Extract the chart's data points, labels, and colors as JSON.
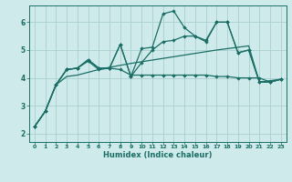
{
  "xlabel": "Humidex (Indice chaleur)",
  "bg_color": "#ceeaea",
  "grid_color": "#aacfcf",
  "line_color": "#1a6e65",
  "xlim": [
    -0.5,
    23.5
  ],
  "ylim": [
    1.7,
    6.6
  ],
  "xticks": [
    0,
    1,
    2,
    3,
    4,
    5,
    6,
    7,
    8,
    9,
    10,
    11,
    12,
    13,
    14,
    15,
    16,
    17,
    18,
    19,
    20,
    21,
    22,
    23
  ],
  "yticks": [
    2,
    3,
    4,
    5,
    6
  ],
  "line_nomark_y": [
    2.25,
    2.8,
    3.75,
    4.05,
    4.1,
    4.2,
    4.3,
    4.38,
    4.45,
    4.52,
    4.58,
    4.64,
    4.7,
    4.76,
    4.82,
    4.88,
    4.94,
    5.0,
    5.05,
    5.1,
    5.15,
    3.85,
    3.9,
    3.95
  ],
  "line_flat_y": [
    2.25,
    2.8,
    3.75,
    4.3,
    4.35,
    4.6,
    4.3,
    4.35,
    4.3,
    4.1,
    4.1,
    4.1,
    4.1,
    4.1,
    4.1,
    4.1,
    4.1,
    4.05,
    4.05,
    4.0,
    4.0,
    4.0,
    3.85,
    3.95
  ],
  "line_mid_y": [
    2.25,
    2.8,
    3.75,
    4.3,
    4.35,
    4.65,
    4.35,
    4.35,
    5.2,
    4.05,
    4.55,
    5.0,
    5.3,
    5.35,
    5.5,
    5.5,
    5.3,
    6.0,
    6.0,
    4.9,
    5.0,
    3.85,
    3.85,
    3.95
  ],
  "line_top_y": [
    2.25,
    2.8,
    3.75,
    4.3,
    4.35,
    4.65,
    4.35,
    4.35,
    5.2,
    4.05,
    5.05,
    5.1,
    6.3,
    6.4,
    5.8,
    5.5,
    5.35,
    6.0,
    6.0,
    4.9,
    5.0,
    3.85,
    3.85,
    3.95
  ]
}
